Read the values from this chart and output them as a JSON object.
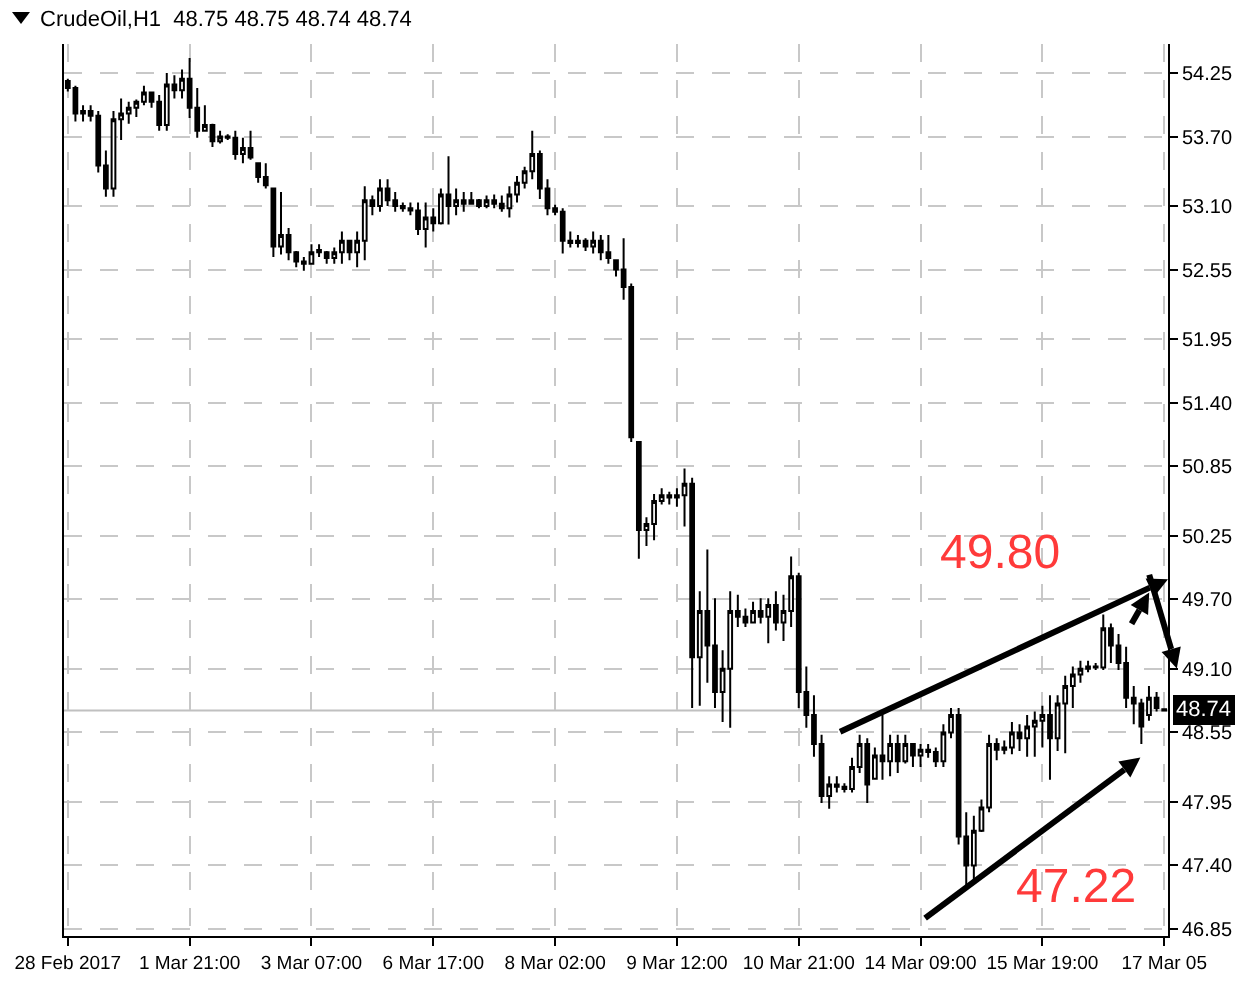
{
  "chart_data": {
    "type": "candlestick",
    "title": "CrudeOil,H1  48.75 48.75 48.74 48.74",
    "categories": [
      "28 Feb 2017",
      null,
      null,
      null,
      null,
      null,
      null,
      null,
      null,
      null,
      null,
      null,
      null,
      null,
      null,
      null,
      "1 Mar 21:00",
      null,
      null,
      null,
      null,
      null,
      null,
      null,
      null,
      null,
      null,
      null,
      null,
      null,
      null,
      null,
      "3 Mar 07:00",
      null,
      null,
      null,
      null,
      null,
      null,
      null,
      null,
      null,
      null,
      null,
      null,
      null,
      null,
      null,
      "6 Mar 17:00",
      null,
      null,
      null,
      null,
      null,
      null,
      null,
      null,
      null,
      null,
      null,
      null,
      null,
      null,
      null,
      "8 Mar 02:00",
      null,
      null,
      null,
      null,
      null,
      null,
      null,
      null,
      null,
      null,
      null,
      null,
      null,
      null,
      null,
      "9 Mar 12:00",
      null,
      null,
      null,
      null,
      null,
      null,
      null,
      null,
      null,
      null,
      null,
      null,
      null,
      null,
      null,
      "10 Mar 21:00",
      null,
      null,
      null,
      null,
      null,
      null,
      null,
      null,
      null,
      null,
      null,
      null,
      null,
      null,
      null,
      "14 Mar 09:00",
      null,
      null,
      null,
      null,
      null,
      null,
      null,
      null,
      null,
      null,
      null,
      null,
      null,
      null,
      null,
      "15 Mar 19:00",
      null,
      null,
      null,
      null,
      null,
      null,
      null,
      null,
      null,
      null,
      null,
      null,
      null,
      null,
      null,
      "17 Mar 05"
    ],
    "ohlc": [
      [
        54.18,
        54.2,
        54.09,
        54.12
      ],
      [
        54.12,
        54.14,
        53.83,
        53.9
      ],
      [
        53.9,
        53.97,
        53.83,
        53.92
      ],
      [
        53.92,
        53.97,
        53.83,
        53.88
      ],
      [
        53.88,
        53.92,
        53.39,
        53.45
      ],
      [
        53.45,
        53.58,
        53.18,
        53.25
      ],
      [
        53.25,
        53.92,
        53.18,
        53.85
      ],
      [
        53.85,
        54.03,
        53.67,
        53.9
      ],
      [
        53.9,
        54.0,
        53.81,
        53.95
      ],
      [
        53.95,
        54.02,
        53.87,
        54.0
      ],
      [
        54.0,
        54.14,
        53.97,
        54.08
      ],
      [
        54.08,
        54.09,
        53.95,
        54.0
      ],
      [
        54.0,
        54.06,
        53.75,
        53.8
      ],
      [
        53.8,
        54.25,
        53.75,
        54.15
      ],
      [
        54.15,
        54.23,
        54.03,
        54.1
      ],
      [
        54.1,
        54.28,
        54.03,
        54.2
      ],
      [
        54.2,
        54.38,
        53.86,
        53.95
      ],
      [
        53.95,
        54.12,
        53.69,
        53.75
      ],
      [
        53.75,
        53.97,
        53.75,
        53.8
      ],
      [
        53.8,
        53.81,
        53.61,
        53.66
      ],
      [
        53.66,
        53.75,
        53.64,
        53.7
      ],
      [
        53.7,
        53.72,
        53.67,
        53.69
      ],
      [
        53.69,
        53.75,
        53.5,
        53.55
      ],
      [
        53.55,
        53.69,
        53.47,
        53.6
      ],
      [
        53.6,
        53.75,
        53.5,
        53.52
      ],
      [
        53.47,
        53.47,
        53.3,
        53.35
      ],
      [
        53.35,
        53.47,
        53.25,
        53.28
      ],
      [
        53.25,
        53.25,
        52.66,
        52.75
      ],
      [
        52.75,
        53.22,
        52.68,
        52.85
      ],
      [
        52.85,
        52.91,
        52.63,
        52.7
      ],
      [
        52.7,
        52.71,
        52.57,
        52.62
      ],
      [
        52.62,
        52.66,
        52.54,
        52.6
      ],
      [
        52.6,
        52.77,
        52.6,
        52.7
      ],
      [
        52.7,
        52.77,
        52.66,
        52.72
      ],
      [
        52.7,
        52.71,
        52.6,
        52.65
      ],
      [
        52.65,
        52.74,
        52.6,
        52.7
      ],
      [
        52.7,
        52.88,
        52.6,
        52.8
      ],
      [
        52.8,
        52.8,
        52.63,
        52.7
      ],
      [
        52.7,
        52.88,
        52.57,
        52.8
      ],
      [
        52.8,
        53.27,
        52.63,
        53.15
      ],
      [
        53.15,
        53.19,
        53.02,
        53.1
      ],
      [
        53.1,
        53.33,
        53.05,
        53.25
      ],
      [
        53.25,
        53.33,
        53.1,
        53.15
      ],
      [
        53.15,
        53.22,
        53.05,
        53.1
      ],
      [
        53.1,
        53.13,
        53.05,
        53.08
      ],
      [
        53.08,
        53.13,
        53.02,
        53.06
      ],
      [
        53.06,
        53.13,
        52.85,
        52.9
      ],
      [
        52.9,
        53.13,
        52.74,
        53.0
      ],
      [
        53.0,
        53.08,
        52.88,
        52.95
      ],
      [
        52.95,
        53.25,
        52.94,
        53.2
      ],
      [
        53.2,
        53.53,
        52.94,
        53.1
      ],
      [
        53.1,
        53.25,
        53.02,
        53.15
      ],
      [
        53.15,
        53.22,
        53.05,
        53.12
      ],
      [
        53.12,
        53.22,
        53.11,
        53.15
      ],
      [
        53.15,
        53.16,
        53.08,
        53.1
      ],
      [
        53.1,
        53.19,
        53.08,
        53.15
      ],
      [
        53.15,
        53.2,
        53.08,
        53.12
      ],
      [
        53.12,
        53.19,
        53.05,
        53.08
      ],
      [
        53.08,
        53.27,
        53.0,
        53.2
      ],
      [
        53.2,
        53.36,
        53.13,
        53.3
      ],
      [
        53.3,
        53.44,
        53.25,
        53.4
      ],
      [
        53.4,
        53.75,
        53.33,
        53.55
      ],
      [
        53.55,
        53.58,
        53.16,
        53.25
      ],
      [
        53.25,
        53.33,
        53.02,
        53.08
      ],
      [
        53.08,
        53.11,
        53.02,
        53.05
      ],
      [
        53.05,
        53.08,
        52.69,
        52.8
      ],
      [
        52.8,
        52.88,
        52.74,
        52.78
      ],
      [
        52.78,
        52.85,
        52.74,
        52.8
      ],
      [
        52.8,
        52.82,
        52.71,
        52.75
      ],
      [
        52.75,
        52.88,
        52.69,
        52.8
      ],
      [
        52.8,
        52.85,
        52.63,
        52.7
      ],
      [
        52.7,
        52.85,
        52.6,
        52.65
      ],
      [
        52.63,
        52.63,
        52.49,
        52.55
      ],
      [
        52.55,
        52.82,
        52.29,
        52.4
      ],
      [
        52.4,
        52.43,
        51.06,
        51.1
      ],
      [
        51.06,
        51.06,
        50.05,
        50.3
      ],
      [
        50.3,
        50.41,
        50.16,
        50.35
      ],
      [
        50.35,
        50.61,
        50.21,
        50.55
      ],
      [
        50.55,
        50.66,
        50.52,
        50.6
      ],
      [
        50.6,
        50.63,
        50.52,
        50.58
      ],
      [
        50.58,
        50.66,
        50.5,
        50.6
      ],
      [
        50.6,
        50.83,
        50.33,
        50.7
      ],
      [
        50.7,
        50.75,
        48.76,
        49.2
      ],
      [
        49.2,
        49.77,
        48.78,
        49.6
      ],
      [
        49.6,
        50.13,
        48.98,
        49.3
      ],
      [
        49.3,
        49.71,
        48.76,
        48.9
      ],
      [
        48.9,
        49.26,
        48.64,
        49.1
      ],
      [
        49.1,
        49.77,
        48.59,
        49.6
      ],
      [
        49.6,
        49.74,
        49.46,
        49.55
      ],
      [
        49.55,
        49.62,
        49.46,
        49.5
      ],
      [
        49.5,
        49.68,
        49.49,
        49.6
      ],
      [
        49.6,
        49.71,
        49.49,
        49.55
      ],
      [
        49.55,
        49.71,
        49.32,
        49.65
      ],
      [
        49.65,
        49.77,
        49.43,
        49.5
      ],
      [
        49.5,
        49.74,
        49.34,
        49.6
      ],
      [
        49.6,
        50.07,
        49.46,
        49.9
      ],
      [
        49.9,
        49.93,
        48.76,
        48.9
      ],
      [
        48.9,
        49.12,
        48.59,
        48.7
      ],
      [
        48.7,
        48.87,
        48.34,
        48.45
      ],
      [
        48.45,
        48.53,
        47.94,
        48.0
      ],
      [
        48.0,
        48.17,
        47.89,
        48.1
      ],
      [
        48.1,
        48.17,
        48.03,
        48.08
      ],
      [
        48.08,
        48.11,
        48.03,
        48.06
      ],
      [
        48.06,
        48.33,
        48.03,
        48.25
      ],
      [
        48.25,
        48.53,
        48.2,
        48.45
      ],
      [
        48.45,
        48.5,
        47.94,
        48.1
      ],
      [
        48.15,
        48.42,
        48.14,
        48.35
      ],
      [
        48.35,
        48.7,
        48.14,
        48.3
      ],
      [
        48.3,
        48.53,
        48.17,
        48.45
      ],
      [
        48.45,
        48.53,
        48.2,
        48.3
      ],
      [
        48.3,
        48.53,
        48.28,
        48.45
      ],
      [
        48.45,
        48.45,
        48.25,
        48.35
      ],
      [
        48.35,
        48.45,
        48.25,
        48.4
      ],
      [
        48.4,
        48.45,
        48.33,
        48.38
      ],
      [
        48.38,
        48.42,
        48.25,
        48.3
      ],
      [
        48.3,
        48.62,
        48.25,
        48.55
      ],
      [
        48.55,
        48.76,
        48.5,
        48.7
      ],
      [
        48.7,
        48.76,
        47.58,
        47.65
      ],
      [
        47.65,
        47.86,
        47.22,
        47.4
      ],
      [
        47.4,
        47.83,
        47.25,
        47.7
      ],
      [
        47.7,
        47.97,
        47.69,
        47.9
      ],
      [
        47.9,
        48.53,
        47.86,
        48.45
      ],
      [
        48.45,
        48.5,
        48.31,
        48.4
      ],
      [
        48.4,
        48.48,
        48.36,
        48.42
      ],
      [
        48.42,
        48.64,
        48.36,
        48.55
      ],
      [
        48.55,
        48.62,
        48.39,
        48.5
      ],
      [
        48.5,
        48.7,
        48.34,
        48.6
      ],
      [
        48.6,
        48.73,
        48.34,
        48.65
      ],
      [
        48.65,
        48.78,
        48.42,
        48.7
      ],
      [
        48.7,
        48.87,
        48.14,
        48.5
      ],
      [
        48.5,
        48.87,
        48.39,
        48.8
      ],
      [
        48.8,
        49.04,
        48.37,
        48.95
      ],
      [
        48.95,
        49.12,
        48.76,
        49.05
      ],
      [
        49.05,
        49.17,
        48.98,
        49.1
      ],
      [
        49.1,
        49.17,
        49.07,
        49.12
      ],
      [
        49.12,
        49.15,
        49.09,
        49.11
      ],
      [
        49.11,
        49.57,
        49.09,
        49.45
      ],
      [
        49.45,
        49.49,
        49.15,
        49.3
      ],
      [
        49.3,
        49.4,
        49.09,
        49.15
      ],
      [
        49.15,
        49.29,
        48.76,
        48.85
      ],
      [
        48.85,
        48.95,
        48.62,
        48.8
      ],
      [
        48.8,
        48.84,
        48.45,
        48.6
      ],
      [
        48.7,
        48.95,
        48.65,
        48.85
      ],
      [
        48.85,
        48.9,
        48.73,
        48.76
      ],
      [
        48.75,
        48.75,
        48.74,
        48.74
      ]
    ],
    "color": "#000000",
    "ylim": [
      46.79,
      54.5
    ],
    "yticks": [
      54.25,
      {
        "value": 53.7,
        "label": "53.70"
      },
      {
        "value": 53.1,
        "label": "53.10"
      },
      52.55,
      51.95,
      {
        "value": 51.4,
        "label": "51.40"
      },
      50.85,
      50.25,
      {
        "value": 49.7,
        "label": "49.70"
      },
      {
        "value": 49.1,
        "label": "49.10"
      },
      48.55,
      47.95,
      {
        "value": 47.4,
        "label": "47.40"
      },
      46.85
    ],
    "ref_lines": [
      {
        "axis": "y",
        "value": 48.74,
        "label": "48.74",
        "color": "#c0c0c0"
      }
    ],
    "annotations": [
      "49.80",
      "47.22"
    ],
    "grid": true
  }
}
